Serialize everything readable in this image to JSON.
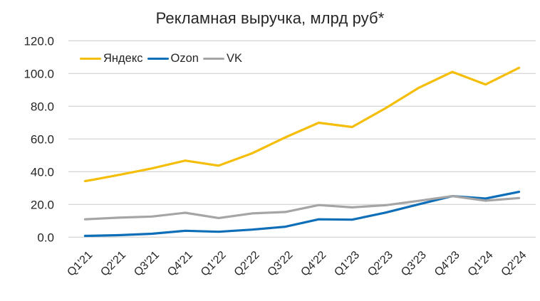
{
  "chart_data": {
    "type": "line",
    "title": "Рекламная выручка, млрд руб*",
    "xlabel": "",
    "ylabel": "",
    "ylim": [
      0,
      120
    ],
    "yticks": [
      "0.0",
      "20.0",
      "40.0",
      "60.0",
      "80.0",
      "100.0",
      "120.0"
    ],
    "ytick_values": [
      0,
      20,
      40,
      60,
      80,
      100,
      120
    ],
    "grid": true,
    "legend_position": "top-left inside",
    "categories": [
      "Q1'21",
      "Q2'21",
      "Q3'21",
      "Q4'21",
      "Q1'22",
      "Q2'22",
      "Q3'22",
      "Q4'22",
      "Q1'23",
      "Q2'23",
      "Q3'23",
      "Q4'23",
      "Q1'24",
      "Q2'24"
    ],
    "series": [
      {
        "name": "Яндекс",
        "color": "#F5BE0B",
        "values": [
          34.2,
          38.0,
          42.0,
          46.8,
          43.7,
          51.2,
          61.0,
          69.9,
          67.3,
          78.8,
          91.3,
          101.0,
          93.3,
          103.5
        ]
      },
      {
        "name": "Ozon",
        "color": "#0E6EB8",
        "values": [
          0.8,
          1.2,
          2.1,
          3.9,
          3.3,
          4.6,
          6.4,
          10.9,
          10.7,
          15.0,
          20.1,
          25.1,
          23.6,
          27.7
        ]
      },
      {
        "name": "VK",
        "color": "#A5A5A5",
        "values": [
          10.9,
          11.9,
          12.6,
          14.9,
          11.7,
          14.5,
          15.4,
          19.6,
          18.2,
          19.5,
          22.2,
          25.1,
          22.3,
          23.9
        ]
      }
    ]
  },
  "style": {
    "gridline_color": "#D9D9D9",
    "text_color": "#262626"
  }
}
